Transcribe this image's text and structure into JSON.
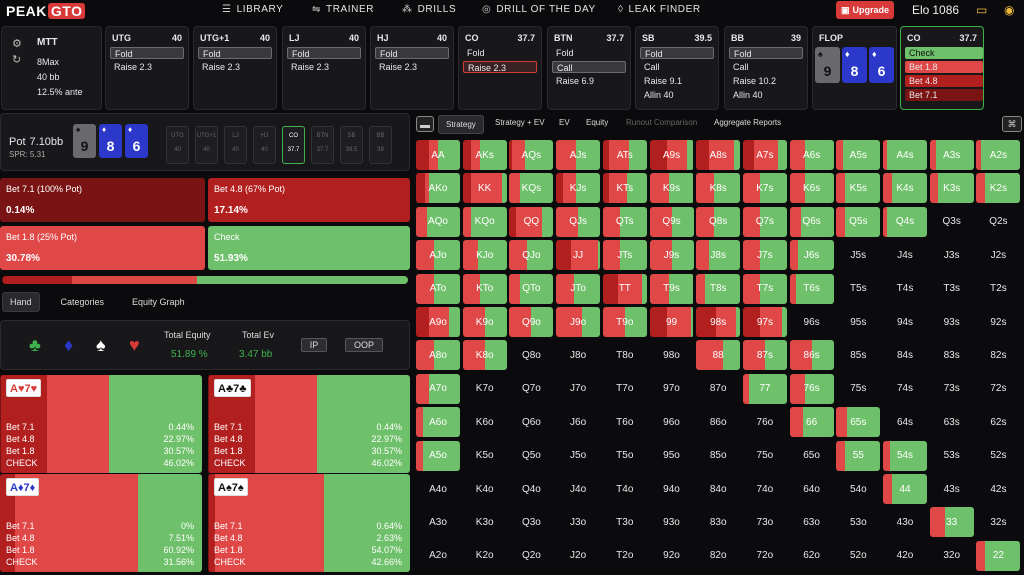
{
  "topnav": {
    "logo_a": "PEAK",
    "logo_b": "GTO",
    "library": "LIBRARY",
    "trainer": "TRAINER",
    "drills": "DRILLS",
    "drill_of_day": "DRILL OF THE DAY",
    "leak_finder": "LEAK FINDER",
    "upgrade": "Upgrade",
    "elo_label": "Elo",
    "elo_value": "1086"
  },
  "game": {
    "type": "MTT",
    "table": "8Max",
    "stack": "40 bb",
    "ante": "12.5% ante"
  },
  "positions": [
    {
      "name": "UTG",
      "stack": "40",
      "actions": [
        "Fold",
        "Raise 2.3"
      ],
      "selected": 0
    },
    {
      "name": "UTG+1",
      "stack": "40",
      "actions": [
        "Fold",
        "Raise 2.3"
      ],
      "selected": 0
    },
    {
      "name": "LJ",
      "stack": "40",
      "actions": [
        "Fold",
        "Raise 2.3"
      ],
      "selected": 0
    },
    {
      "name": "HJ",
      "stack": "40",
      "actions": [
        "Fold",
        "Raise 2.3"
      ],
      "selected": 0
    },
    {
      "name": "CO",
      "stack": "37.7",
      "actions": [
        "Fold",
        "Raise 2.3"
      ],
      "selected": 1
    },
    {
      "name": "BTN",
      "stack": "37.7",
      "actions": [
        "Fold",
        "Call",
        "Raise 6.9"
      ],
      "selected": 1
    },
    {
      "name": "SB",
      "stack": "39.5",
      "actions": [
        "Fold",
        "Call",
        "Raise 9.1",
        "Allin 40"
      ],
      "selected": 0
    },
    {
      "name": "BB",
      "stack": "39",
      "actions": [
        "Fold",
        "Call",
        "Raise 10.2",
        "Allin 40"
      ],
      "selected": 0
    }
  ],
  "flop": {
    "label": "FLOP",
    "cards": [
      {
        "rank": "9",
        "suit": "♠"
      },
      {
        "rank": "8",
        "suit": "♦"
      },
      {
        "rank": "6",
        "suit": "♦"
      }
    ]
  },
  "co_options": {
    "name": "CO",
    "stack": "37.7",
    "opts": [
      "Check",
      "Bet 1.8",
      "Bet 4.8",
      "Bet 7.1"
    ]
  },
  "pot": {
    "label": "Pot",
    "value": "7.10bb",
    "spr": "SPR: 5.31"
  },
  "seats": [
    {
      "n": "UTG",
      "s": "40"
    },
    {
      "n": "UTG+1",
      "s": "40"
    },
    {
      "n": "LJ",
      "s": "40"
    },
    {
      "n": "HJ",
      "s": "40"
    },
    {
      "n": "CO",
      "s": "37.7"
    },
    {
      "n": "BTN",
      "s": "37.7"
    },
    {
      "n": "SB",
      "s": "39.5"
    },
    {
      "n": "BB",
      "s": "39"
    }
  ],
  "action_blocks": [
    {
      "label": "Bet 7.1 (100% Pot)",
      "pct": "0.14%",
      "color": "#7a1414"
    },
    {
      "label": "Bet 4.8 (67% Pot)",
      "pct": "17.14%",
      "color": "#b21f1f"
    },
    {
      "label": "Bet 1.8 (25% Pot)",
      "pct": "30.78%",
      "color": "#e04848"
    },
    {
      "label": "Check",
      "pct": "51.93%",
      "color": "#6fc06a"
    }
  ],
  "freq_bar": [
    0.14,
    17.14,
    30.78,
    51.93
  ],
  "left_tabs": [
    "Hand",
    "Categories",
    "Equity Graph"
  ],
  "equity": {
    "total_equity_label": "Total Equity",
    "total_equity": "51.89 %",
    "total_ev_label": "Total Ev",
    "total_ev": "3.47 bb",
    "ip": "IP",
    "oop": "OOP"
  },
  "combos": [
    {
      "hand": "A♥7♥",
      "tag_color": "red",
      "segs": [
        0.44,
        22.97,
        30.57,
        46.02
      ],
      "rows": [
        [
          "Bet 7.1",
          "0.44%"
        ],
        [
          "Bet 4.8",
          "22.97%"
        ],
        [
          "Bet 1.8",
          "30.57%"
        ],
        [
          "CHECK",
          "46.02%"
        ]
      ]
    },
    {
      "hand": "A♣7♣",
      "tag_color": "dark",
      "segs": [
        0.44,
        22.97,
        30.57,
        46.02
      ],
      "rows": [
        [
          "Bet 7.1",
          "0.44%"
        ],
        [
          "Bet 4.8",
          "22.97%"
        ],
        [
          "Bet 1.8",
          "30.57%"
        ],
        [
          "CHECK",
          "46.02%"
        ]
      ]
    },
    {
      "hand": "A♦7♦",
      "tag_color": "blue",
      "segs": [
        0,
        7.51,
        60.92,
        31.56
      ],
      "rows": [
        [
          "Bet 7.1",
          "0%"
        ],
        [
          "Bet 4.8",
          "7.51%"
        ],
        [
          "Bet 1.8",
          "60.92%"
        ],
        [
          "CHECK",
          "31.56%"
        ]
      ]
    },
    {
      "hand": "A♠7♠",
      "tag_color": "dark",
      "segs": [
        0.64,
        2.63,
        54.07,
        42.66
      ],
      "rows": [
        [
          "Bet 7.1",
          "0.64%"
        ],
        [
          "Bet 4.8",
          "2.63%"
        ],
        [
          "Bet 1.8",
          "54.07%"
        ],
        [
          "CHECK",
          "42.66%"
        ]
      ]
    }
  ],
  "right_tabs": [
    "Strategy",
    "Strategy + EV",
    "EV",
    "Equity",
    "Runout Comparison",
    "Aggregate Reports"
  ],
  "colors": {
    "check": "#6fc06a",
    "bet_small": "#e04848",
    "bet_mid": "#b21f1f",
    "bet_big": "#7a1414",
    "accent": "#d83a3a"
  },
  "grid_ranks": [
    "A",
    "K",
    "Q",
    "J",
    "T",
    "9",
    "8",
    "7",
    "6",
    "5",
    "4",
    "3",
    "2"
  ],
  "grid_cells": [
    [
      "AA",
      [
        0,
        30,
        20,
        50
      ]
    ],
    [
      "AKs",
      [
        0,
        20,
        20,
        60
      ]
    ],
    [
      "AQs",
      [
        0,
        5,
        30,
        65
      ]
    ],
    [
      "AJs",
      [
        0,
        0,
        45,
        55
      ]
    ],
    [
      "ATs",
      [
        0,
        15,
        45,
        40
      ]
    ],
    [
      "A9s",
      [
        0,
        40,
        45,
        15
      ]
    ],
    [
      "A8s",
      [
        0,
        30,
        55,
        15
      ]
    ],
    [
      "A7s",
      [
        0,
        25,
        55,
        20
      ]
    ],
    [
      "A6s",
      [
        0,
        0,
        35,
        65
      ]
    ],
    [
      "A5s",
      [
        0,
        0,
        15,
        85
      ]
    ],
    [
      "A4s",
      [
        0,
        0,
        10,
        90
      ]
    ],
    [
      "A3s",
      [
        0,
        0,
        15,
        85
      ]
    ],
    [
      "A2s",
      [
        0,
        0,
        10,
        90
      ]
    ],
    [
      "AKo",
      [
        0,
        20,
        10,
        70
      ]
    ],
    [
      "KK",
      [
        0,
        20,
        70,
        10
      ]
    ],
    [
      "KQs",
      [
        0,
        0,
        25,
        75
      ]
    ],
    [
      "KJs",
      [
        0,
        15,
        30,
        55
      ]
    ],
    [
      "KTs",
      [
        0,
        15,
        40,
        45
      ]
    ],
    [
      "K9s",
      [
        0,
        0,
        45,
        55
      ]
    ],
    [
      "K8s",
      [
        0,
        0,
        40,
        60
      ]
    ],
    [
      "K7s",
      [
        0,
        0,
        40,
        60
      ]
    ],
    [
      "K6s",
      [
        0,
        0,
        35,
        65
      ]
    ],
    [
      "K5s",
      [
        0,
        0,
        20,
        80
      ]
    ],
    [
      "K4s",
      [
        0,
        0,
        20,
        80
      ]
    ],
    [
      "K3s",
      [
        0,
        0,
        20,
        80
      ]
    ],
    [
      "K2s",
      [
        0,
        0,
        20,
        80
      ]
    ],
    [
      "AQo",
      [
        0,
        0,
        25,
        75
      ]
    ],
    [
      "KQo",
      [
        0,
        0,
        20,
        80
      ]
    ],
    [
      "QQ",
      [
        0,
        15,
        60,
        25
      ]
    ],
    [
      "QJs",
      [
        0,
        0,
        50,
        50
      ]
    ],
    [
      "QTs",
      [
        0,
        0,
        40,
        60
      ]
    ],
    [
      "Q9s",
      [
        0,
        0,
        50,
        50
      ]
    ],
    [
      "Q8s",
      [
        0,
        0,
        40,
        60
      ]
    ],
    [
      "Q7s",
      [
        0,
        0,
        40,
        60
      ]
    ],
    [
      "Q6s",
      [
        0,
        0,
        25,
        75
      ]
    ],
    [
      "Q5s",
      [
        0,
        0,
        20,
        80
      ]
    ],
    [
      "Q4s",
      [
        0,
        0,
        10,
        90
      ]
    ],
    [
      "Q3s",
      null
    ],
    [
      "Q2s",
      null
    ],
    [
      "AJo",
      [
        0,
        0,
        40,
        60
      ]
    ],
    [
      "KJo",
      [
        0,
        0,
        35,
        65
      ]
    ],
    [
      "QJo",
      [
        0,
        0,
        40,
        60
      ]
    ],
    [
      "JJ",
      [
        0,
        35,
        60,
        5
      ]
    ],
    [
      "JTs",
      [
        0,
        0,
        40,
        60
      ]
    ],
    [
      "J9s",
      [
        0,
        0,
        50,
        50
      ]
    ],
    [
      "J8s",
      [
        0,
        0,
        30,
        70
      ]
    ],
    [
      "J7s",
      [
        0,
        0,
        40,
        60
      ]
    ],
    [
      "J6s",
      [
        0,
        0,
        20,
        80
      ]
    ],
    [
      "J5s",
      null
    ],
    [
      "J4s",
      null
    ],
    [
      "J3s",
      null
    ],
    [
      "J2s",
      null
    ],
    [
      "ATo",
      [
        0,
        0,
        40,
        60
      ]
    ],
    [
      "KTo",
      [
        0,
        0,
        40,
        60
      ]
    ],
    [
      "QTo",
      [
        0,
        0,
        25,
        75
      ]
    ],
    [
      "JTo",
      [
        0,
        0,
        40,
        60
      ]
    ],
    [
      "TT",
      [
        0,
        35,
        55,
        10
      ]
    ],
    [
      "T9s",
      [
        0,
        0,
        45,
        55
      ]
    ],
    [
      "T8s",
      [
        0,
        0,
        20,
        80
      ]
    ],
    [
      "T7s",
      [
        0,
        0,
        40,
        60
      ]
    ],
    [
      "T6s",
      [
        0,
        0,
        15,
        85
      ]
    ],
    [
      "T5s",
      null
    ],
    [
      "T4s",
      null
    ],
    [
      "T3s",
      null
    ],
    [
      "T2s",
      null
    ],
    [
      "A9o",
      [
        0,
        30,
        45,
        25
      ]
    ],
    [
      "K9o",
      [
        0,
        0,
        50,
        50
      ]
    ],
    [
      "Q9o",
      [
        0,
        0,
        50,
        50
      ]
    ],
    [
      "J9o",
      [
        0,
        0,
        60,
        40
      ]
    ],
    [
      "T9o",
      [
        0,
        0,
        50,
        50
      ]
    ],
    [
      "99",
      [
        0,
        40,
        55,
        5
      ]
    ],
    [
      "98s",
      [
        0,
        45,
        45,
        10
      ]
    ],
    [
      "97s",
      [
        0,
        40,
        50,
        10
      ]
    ],
    [
      "96s",
      null
    ],
    [
      "95s",
      null
    ],
    [
      "94s",
      null
    ],
    [
      "93s",
      null
    ],
    [
      "92s",
      null
    ],
    [
      "A8o",
      [
        0,
        0,
        40,
        60
      ]
    ],
    [
      "K8o",
      [
        0,
        0,
        50,
        50
      ]
    ],
    [
      "Q8o",
      null
    ],
    [
      "J8o",
      null
    ],
    [
      "T8o",
      null
    ],
    [
      "98o",
      null
    ],
    [
      "88",
      [
        0,
        0,
        60,
        40
      ]
    ],
    [
      "87s",
      [
        0,
        0,
        50,
        50
      ]
    ],
    [
      "86s",
      [
        0,
        0,
        50,
        50
      ]
    ],
    [
      "85s",
      null
    ],
    [
      "84s",
      null
    ],
    [
      "83s",
      null
    ],
    [
      "82s",
      null
    ],
    [
      "A7o",
      [
        0,
        0,
        30,
        70
      ]
    ],
    [
      "K7o",
      null
    ],
    [
      "Q7o",
      null
    ],
    [
      "J7o",
      null
    ],
    [
      "T7o",
      null
    ],
    [
      "97o",
      null
    ],
    [
      "87o",
      null
    ],
    [
      "77",
      [
        0,
        0,
        15,
        85
      ]
    ],
    [
      "76s",
      [
        0,
        0,
        35,
        65
      ]
    ],
    [
      "75s",
      null
    ],
    [
      "74s",
      null
    ],
    [
      "73s",
      null
    ],
    [
      "72s",
      null
    ],
    [
      "A6o",
      [
        0,
        0,
        15,
        85
      ]
    ],
    [
      "K6o",
      null
    ],
    [
      "Q6o",
      null
    ],
    [
      "J6o",
      null
    ],
    [
      "T6o",
      null
    ],
    [
      "96o",
      null
    ],
    [
      "86o",
      null
    ],
    [
      "76o",
      null
    ],
    [
      "66",
      [
        0,
        0,
        30,
        70
      ]
    ],
    [
      "65s",
      [
        0,
        0,
        25,
        75
      ]
    ],
    [
      "64s",
      null
    ],
    [
      "63s",
      null
    ],
    [
      "62s",
      null
    ],
    [
      "A5o",
      [
        0,
        0,
        15,
        85
      ]
    ],
    [
      "K5o",
      null
    ],
    [
      "Q5o",
      null
    ],
    [
      "J5o",
      null
    ],
    [
      "T5o",
      null
    ],
    [
      "95o",
      null
    ],
    [
      "85o",
      null
    ],
    [
      "75o",
      null
    ],
    [
      "65o",
      null
    ],
    [
      "55",
      [
        0,
        0,
        20,
        80
      ]
    ],
    [
      "54s",
      [
        0,
        0,
        15,
        85
      ]
    ],
    [
      "53s",
      null
    ],
    [
      "52s",
      null
    ],
    [
      "A4o",
      null
    ],
    [
      "K4o",
      null
    ],
    [
      "Q4o",
      null
    ],
    [
      "J4o",
      null
    ],
    [
      "T4o",
      null
    ],
    [
      "94o",
      null
    ],
    [
      "84o",
      null
    ],
    [
      "74o",
      null
    ],
    [
      "64o",
      null
    ],
    [
      "54o",
      null
    ],
    [
      "44",
      [
        0,
        0,
        20,
        80
      ]
    ],
    [
      "43s",
      null
    ],
    [
      "42s",
      null
    ],
    [
      "A3o",
      null
    ],
    [
      "K3o",
      null
    ],
    [
      "Q3o",
      null
    ],
    [
      "J3o",
      null
    ],
    [
      "T3o",
      null
    ],
    [
      "93o",
      null
    ],
    [
      "83o",
      null
    ],
    [
      "73o",
      null
    ],
    [
      "63o",
      null
    ],
    [
      "53o",
      null
    ],
    [
      "43o",
      null
    ],
    [
      "33",
      [
        0,
        0,
        35,
        65
      ]
    ],
    [
      "32s",
      null
    ],
    [
      "A2o",
      null
    ],
    [
      "K2o",
      null
    ],
    [
      "Q2o",
      null
    ],
    [
      "J2o",
      null
    ],
    [
      "T2o",
      null
    ],
    [
      "92o",
      null
    ],
    [
      "82o",
      null
    ],
    [
      "72o",
      null
    ],
    [
      "62o",
      null
    ],
    [
      "52o",
      null
    ],
    [
      "42o",
      null
    ],
    [
      "32o",
      null
    ],
    [
      "22",
      [
        0,
        0,
        20,
        80
      ]
    ]
  ]
}
